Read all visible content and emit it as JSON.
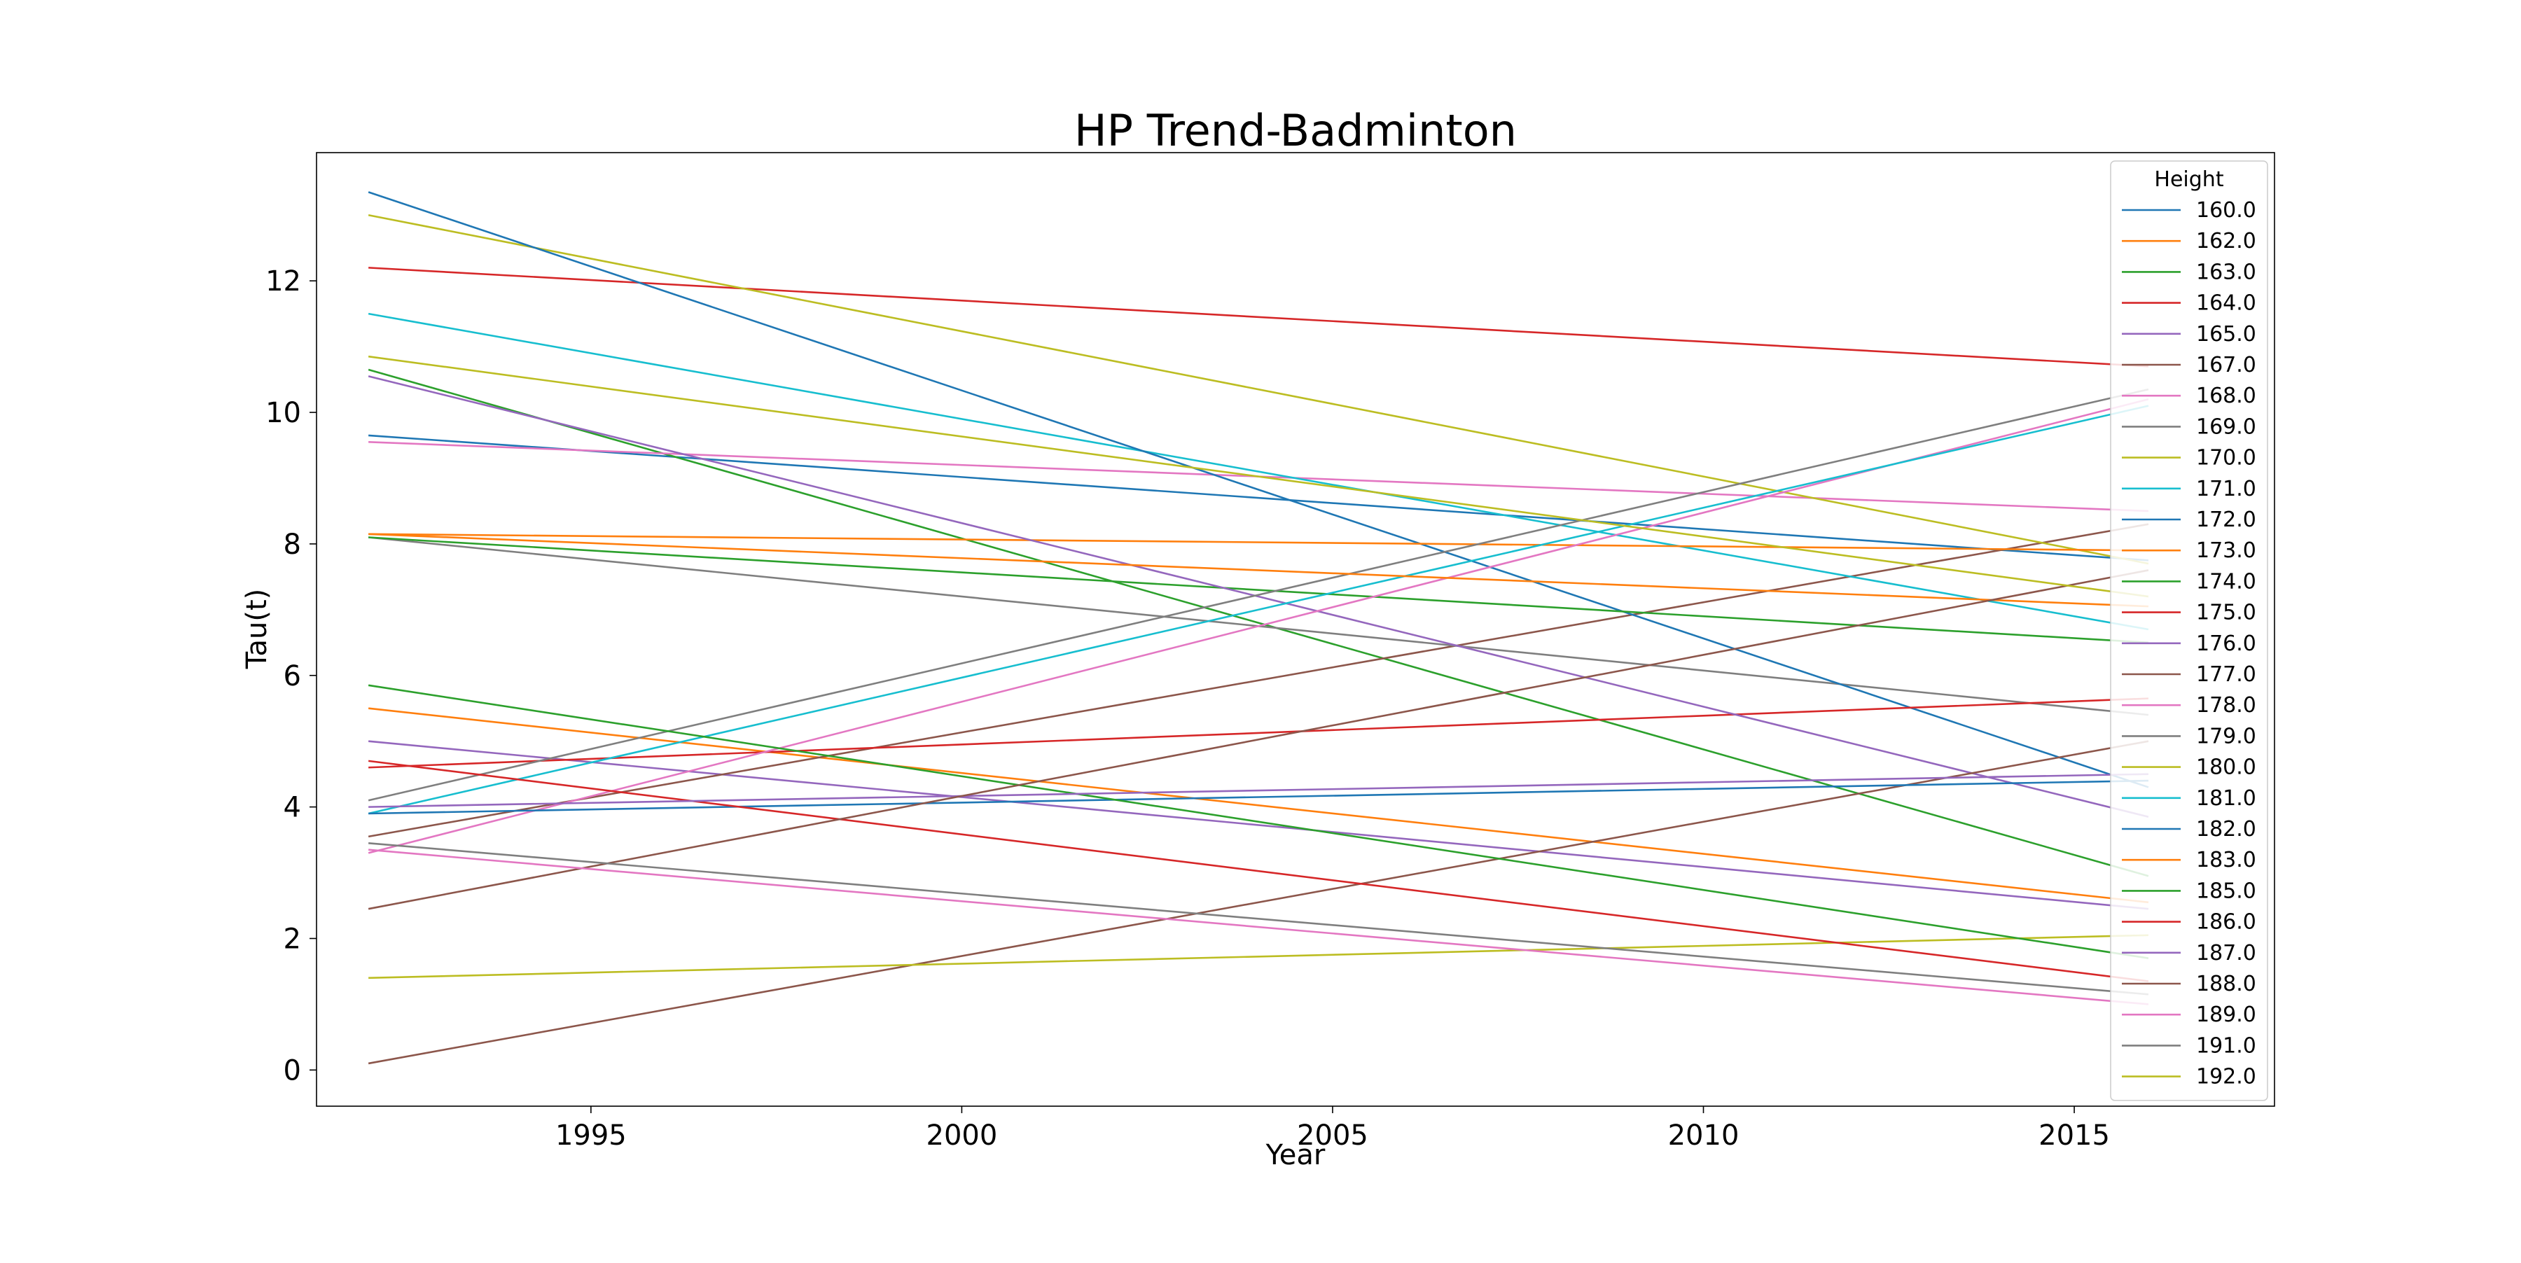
{
  "chart_data": {
    "type": "line",
    "title": "HP Trend-Badminton",
    "xlabel": "Year",
    "ylabel": "Tau(t)",
    "xlim": [
      1991.3,
      2017.7
    ],
    "ylim": [
      -0.55,
      13.95
    ],
    "x_ticks": [
      1995,
      2000,
      2005,
      2010,
      2015
    ],
    "y_ticks": [
      0,
      2,
      4,
      6,
      8,
      10,
      12
    ],
    "grid": false,
    "legend": {
      "title": "Height",
      "placement": "right"
    },
    "x": [
      1992,
      2016
    ],
    "series": [
      {
        "name": "160.0",
        "color": "#1f77b4",
        "values": [
          9.65,
          7.75
        ]
      },
      {
        "name": "162.0",
        "color": "#ff7f0e",
        "values": [
          5.5,
          2.55
        ]
      },
      {
        "name": "163.0",
        "color": "#2ca02c",
        "values": [
          10.65,
          2.95
        ]
      },
      {
        "name": "164.0",
        "color": "#d62728",
        "values": [
          12.2,
          10.7
        ]
      },
      {
        "name": "165.0",
        "color": "#9467bd",
        "values": [
          5.0,
          2.45
        ]
      },
      {
        "name": "167.0",
        "color": "#8c564b",
        "values": [
          3.55,
          8.3
        ]
      },
      {
        "name": "168.0",
        "color": "#e377c2",
        "values": [
          9.55,
          8.5
        ]
      },
      {
        "name": "169.0",
        "color": "#7f7f7f",
        "values": [
          8.1,
          5.4
        ]
      },
      {
        "name": "170.0",
        "color": "#bcbd22",
        "values": [
          13.0,
          7.7
        ]
      },
      {
        "name": "171.0",
        "color": "#17becf",
        "values": [
          11.5,
          6.7
        ]
      },
      {
        "name": "172.0",
        "color": "#1f77b4",
        "values": [
          13.35,
          4.3
        ]
      },
      {
        "name": "173.0",
        "color": "#ff7f0e",
        "values": [
          8.15,
          7.9
        ]
      },
      {
        "name": "174.0",
        "color": "#2ca02c",
        "values": [
          8.1,
          6.5
        ]
      },
      {
        "name": "175.0",
        "color": "#d62728",
        "values": [
          4.6,
          5.65
        ]
      },
      {
        "name": "176.0",
        "color": "#9467bd",
        "values": [
          10.55,
          3.85
        ]
      },
      {
        "name": "177.0",
        "color": "#8c564b",
        "values": [
          0.1,
          5.0
        ]
      },
      {
        "name": "178.0",
        "color": "#e377c2",
        "values": [
          3.3,
          10.2
        ]
      },
      {
        "name": "179.0",
        "color": "#7f7f7f",
        "values": [
          4.1,
          10.35
        ]
      },
      {
        "name": "180.0",
        "color": "#bcbd22",
        "values": [
          1.4,
          2.05
        ]
      },
      {
        "name": "181.0",
        "color": "#17becf",
        "values": [
          3.9,
          10.1
        ]
      },
      {
        "name": "182.0",
        "color": "#1f77b4",
        "values": [
          3.9,
          4.4
        ]
      },
      {
        "name": "183.0",
        "color": "#ff7f0e",
        "values": [
          8.15,
          7.05
        ]
      },
      {
        "name": "185.0",
        "color": "#2ca02c",
        "values": [
          5.85,
          1.7
        ]
      },
      {
        "name": "186.0",
        "color": "#d62728",
        "values": [
          4.7,
          1.35
        ]
      },
      {
        "name": "187.0",
        "color": "#9467bd",
        "values": [
          4.0,
          4.5
        ]
      },
      {
        "name": "188.0",
        "color": "#8c564b",
        "values": [
          2.45,
          7.6
        ]
      },
      {
        "name": "189.0",
        "color": "#e377c2",
        "values": [
          3.35,
          1.0
        ]
      },
      {
        "name": "191.0",
        "color": "#7f7f7f",
        "values": [
          3.45,
          1.15
        ]
      },
      {
        "name": "192.0",
        "color": "#bcbd22",
        "values": [
          10.85,
          7.2
        ]
      }
    ]
  }
}
